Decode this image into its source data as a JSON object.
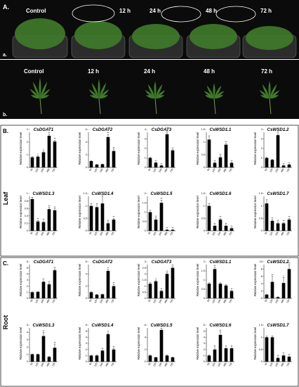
{
  "panel_a": {
    "letter": "A.",
    "sub_letter": "a.",
    "timepoints": [
      "Control",
      "12 h",
      "24 h",
      "48 h",
      "72 h"
    ]
  },
  "panel_b_photo": {
    "sub_letter": "b.",
    "timepoints": [
      "Control",
      "12 h",
      "24 h",
      "48 h",
      "72 h"
    ]
  },
  "panel_B": {
    "letter": "B.",
    "tissue": "Leaf"
  },
  "panel_C": {
    "letter": "C.",
    "tissue": "Root"
  },
  "colors": {
    "bar": "#000000",
    "photo_bg": "#0b0b0b",
    "leaf": "#3f7a2a"
  },
  "chart_data": [
    {
      "type": "bar",
      "panel": "B",
      "row": 0,
      "col": 0,
      "title": "CsDGAT1",
      "ylabel": "Relative expression level",
      "categories": [
        "0h",
        "12h",
        "24h",
        "48h",
        "72h"
      ],
      "values": [
        0.8,
        0.85,
        1.2,
        2.5,
        2.05
      ],
      "errors": [
        0.05,
        0.08,
        0.1,
        0.12,
        0.1
      ],
      "sig": [
        "",
        "*",
        "*",
        "**",
        "**"
      ],
      "yticks": [
        0,
        1,
        2,
        3
      ],
      "ylim": [
        0,
        3
      ]
    },
    {
      "type": "bar",
      "panel": "B",
      "row": 0,
      "col": 1,
      "title": "CsDGAT2",
      "ylabel": "Relative expression level",
      "categories": [
        "0h",
        "12h",
        "24h",
        "48h",
        "72h"
      ],
      "values": [
        1.0,
        0.45,
        0.5,
        4.8,
        2.6
      ],
      "errors": [
        0.06,
        0.05,
        0.05,
        0.4,
        0.3
      ],
      "sig": [
        "",
        "",
        "",
        "**",
        "**"
      ],
      "yticks": [
        0,
        2,
        4,
        6
      ],
      "ylim": [
        0,
        6
      ]
    },
    {
      "type": "bar",
      "panel": "B",
      "row": 0,
      "col": 2,
      "title": "CsDGAT3",
      "ylabel": "Relative expression level",
      "categories": [
        "0h",
        "12h",
        "24h",
        "48h",
        "72h"
      ],
      "values": [
        1.0,
        0.5,
        0.2,
        3.5,
        1.8
      ],
      "errors": [
        0.08,
        0.05,
        0.03,
        0.15,
        0.1
      ],
      "sig": [
        "",
        "**",
        "**",
        "**",
        "**"
      ],
      "yticks": [
        0,
        1,
        2,
        3,
        4
      ],
      "ylim": [
        0,
        4
      ]
    },
    {
      "type": "bar",
      "panel": "B",
      "row": 0,
      "col": 3,
      "title": "CsWSD1.1",
      "ylabel": "Relative expression level",
      "categories": [
        "0h",
        "12h",
        "24h",
        "48h",
        "72h"
      ],
      "values": [
        1.1,
        0.18,
        0.4,
        0.9,
        0.18
      ],
      "errors": [
        0.15,
        0.03,
        0.05,
        0.05,
        0.03
      ],
      "sig": [
        "",
        "**",
        "**",
        "**",
        "**"
      ],
      "yticks": [
        0,
        0.5,
        1.0,
        1.5
      ],
      "ylim": [
        0,
        1.5
      ]
    },
    {
      "type": "bar",
      "panel": "B",
      "row": 0,
      "col": 4,
      "title": "CsWSD1.2",
      "ylabel": "Relative expression level",
      "categories": [
        "0h",
        "12h",
        "24h",
        "48h",
        "72h"
      ],
      "values": [
        1.0,
        0.8,
        3.4,
        0.2,
        0.3
      ],
      "errors": [
        0.05,
        0.05,
        0.15,
        0.03,
        0.03
      ],
      "sig": [
        "",
        "",
        "**",
        "**",
        "**"
      ],
      "yticks": [
        0,
        1,
        2,
        3,
        4
      ],
      "ylim": [
        0,
        4
      ]
    },
    {
      "type": "bar",
      "panel": "B",
      "row": 1,
      "col": 0,
      "title": "CsWSD1.3",
      "ylabel": "Relative expression level",
      "categories": [
        "0h",
        "12h",
        "24h",
        "48h",
        "72h"
      ],
      "values": [
        0.85,
        0.25,
        0.23,
        0.58,
        0.55
      ],
      "errors": [
        0.05,
        0.03,
        0.03,
        0.05,
        0.04
      ],
      "sig": [
        "",
        "**",
        "**",
        "**",
        "**"
      ],
      "yticks": [
        0,
        0.2,
        0.4,
        0.6,
        0.8,
        1.0
      ],
      "ylim": [
        0,
        1.0
      ]
    },
    {
      "type": "bar",
      "panel": "B",
      "row": 1,
      "col": 1,
      "title": "CsWSD1.4",
      "ylabel": "Relative expression level",
      "categories": [
        "0h",
        "12h",
        "24h",
        "48h",
        "72h"
      ],
      "values": [
        1.0,
        0.95,
        1.1,
        0.3,
        0.45
      ],
      "errors": [
        0.1,
        0.15,
        0.3,
        0.05,
        0.05
      ],
      "sig": [
        "",
        "",
        "",
        "**",
        "**"
      ],
      "yticks": [
        0,
        0.5,
        1.0,
        1.5
      ],
      "ylim": [
        0,
        1.5
      ]
    },
    {
      "type": "bar",
      "panel": "B",
      "row": 1,
      "col": 2,
      "title": "CsWSD1.5",
      "ylabel": "Relative expression level",
      "categories": [
        "0h",
        "12h",
        "24h",
        "48h",
        "72h"
      ],
      "values": [
        1.0,
        0.6,
        1.5,
        0.05,
        0.05
      ],
      "errors": [
        0.1,
        0.1,
        0.15,
        0.02,
        0.02
      ],
      "sig": [
        "",
        "**",
        "**",
        "**",
        "**"
      ],
      "yticks": [
        0,
        0.5,
        1.0,
        1.5,
        2.0
      ],
      "ylim": [
        0,
        2.0
      ]
    },
    {
      "type": "bar",
      "panel": "B",
      "row": 1,
      "col": 3,
      "title": "CsWSD1.6",
      "ylabel": "Relative expression level",
      "categories": [
        "0h",
        "12h",
        "24h",
        "48h",
        "72h"
      ],
      "values": [
        1.0,
        0.2,
        0.45,
        0.2,
        0.1
      ],
      "errors": [
        0.1,
        0.03,
        0.05,
        0.03,
        0.02
      ],
      "sig": [
        "",
        "**",
        "**",
        "**",
        "**"
      ],
      "yticks": [
        0,
        0.5,
        1.0,
        1.5
      ],
      "ylim": [
        0,
        1.5
      ]
    },
    {
      "type": "bar",
      "panel": "B",
      "row": 1,
      "col": 4,
      "title": "CsWSD1.7",
      "ylabel": "Relative expression level",
      "categories": [
        "0h",
        "12h",
        "24h",
        "48h",
        "72h"
      ],
      "values": [
        1.1,
        0.4,
        0.3,
        0.3,
        0.45
      ],
      "errors": [
        0.15,
        0.05,
        0.05,
        0.03,
        0.05
      ],
      "sig": [
        "",
        "**",
        "**",
        "**",
        "**"
      ],
      "yticks": [
        0,
        0.5,
        1.0,
        1.5
      ],
      "ylim": [
        0,
        1.5
      ]
    },
    {
      "type": "bar",
      "panel": "C",
      "row": 0,
      "col": 0,
      "title": "CsDGAT1",
      "ylabel": "Relative expression level",
      "categories": [
        "0h",
        "12h",
        "24h",
        "48h",
        "72h"
      ],
      "values": [
        1.0,
        1.05,
        2.7,
        2.3,
        4.6
      ],
      "errors": [
        0.05,
        0.05,
        0.15,
        0.15,
        0.2
      ],
      "sig": [
        "",
        "",
        "**",
        "**",
        "**"
      ],
      "yticks": [
        0,
        1,
        2,
        3,
        4,
        5,
        6
      ],
      "ylim": [
        0,
        6
      ]
    },
    {
      "type": "bar",
      "panel": "C",
      "row": 0,
      "col": 1,
      "title": "CsDGAT2",
      "ylabel": "Relative expression level",
      "categories": [
        "0h",
        "12h",
        "24h",
        "48h",
        "72h"
      ],
      "values": [
        1.0,
        0.6,
        0.65,
        4.5,
        2.0
      ],
      "errors": [
        0.06,
        0.05,
        0.05,
        0.2,
        0.3
      ],
      "sig": [
        "",
        "",
        "",
        "**",
        "**"
      ],
      "yticks": [
        0,
        2,
        4,
        6
      ],
      "ylim": [
        0,
        6
      ]
    },
    {
      "type": "bar",
      "panel": "C",
      "row": 0,
      "col": 2,
      "title": "CsDGAT3",
      "ylabel": "Relative expression level",
      "categories": [
        "0h",
        "12h",
        "24h",
        "48h",
        "72h"
      ],
      "values": [
        1.2,
        1.4,
        0.6,
        2.0,
        2.5
      ],
      "errors": [
        0.1,
        0.1,
        0.05,
        0.1,
        0.1
      ],
      "sig": [
        "",
        "*",
        "**",
        "**",
        "**"
      ],
      "yticks": [
        0,
        0.5,
        1.0,
        1.5,
        2.0,
        2.5,
        3.0
      ],
      "ylim": [
        0,
        3.0
      ]
    },
    {
      "type": "bar",
      "panel": "C",
      "row": 0,
      "col": 3,
      "title": "CsWSD1.1",
      "ylabel": "Relative expression level",
      "categories": [
        "0h",
        "12h",
        "24h",
        "48h",
        "72h"
      ],
      "values": [
        0.8,
        1.6,
        0.8,
        0.7,
        0.4
      ],
      "errors": [
        0.05,
        0.1,
        0.05,
        0.05,
        0.04
      ],
      "sig": [
        "",
        "**",
        "",
        "",
        "**"
      ],
      "yticks": [
        0,
        0.5,
        1.0,
        1.5,
        2.0
      ],
      "ylim": [
        0,
        2.0
      ]
    },
    {
      "type": "bar",
      "panel": "C",
      "row": 0,
      "col": 4,
      "title": "CsWSD1.2",
      "ylabel": "Relative expression level",
      "categories": [
        "0h",
        "12h",
        "24h",
        "48h",
        "72h"
      ],
      "values": [
        1.0,
        4.5,
        0.3,
        4.2,
        8.0
      ],
      "errors": [
        0.1,
        1.5,
        0.1,
        1.5,
        1.2
      ],
      "sig": [
        "",
        "**",
        "",
        "*",
        "**"
      ],
      "yticks": [
        0,
        2,
        4,
        6,
        8,
        10
      ],
      "ylim": [
        0,
        10
      ]
    },
    {
      "type": "bar",
      "panel": "C",
      "row": 1,
      "col": 0,
      "title": "CsWSD1.3",
      "ylabel": "Relative expression level",
      "categories": [
        "0h",
        "12h",
        "24h",
        "48h",
        "72h"
      ],
      "values": [
        1.0,
        1.0,
        3.5,
        0.65,
        1.9
      ],
      "errors": [
        0.05,
        0.05,
        0.5,
        0.05,
        0.5
      ],
      "sig": [
        "",
        "",
        "**",
        "",
        "**"
      ],
      "yticks": [
        0,
        1,
        2,
        3,
        4,
        5
      ],
      "ylim": [
        0,
        5
      ]
    },
    {
      "type": "bar",
      "panel": "C",
      "row": 1,
      "col": 1,
      "title": "CsWSD1.4",
      "ylabel": "Relative expression level",
      "categories": [
        "0h",
        "12h",
        "24h",
        "48h",
        "72h"
      ],
      "values": [
        1.0,
        1.0,
        1.8,
        4.5,
        2.0
      ],
      "errors": [
        0.05,
        0.1,
        0.1,
        0.2,
        0.2
      ],
      "sig": [
        "",
        "",
        "**",
        "**",
        "**"
      ],
      "yticks": [
        0,
        1,
        2,
        3,
        4,
        5,
        6
      ],
      "ylim": [
        0,
        6
      ]
    },
    {
      "type": "bar",
      "panel": "C",
      "row": 1,
      "col": 2,
      "title": "CsWSD1.5",
      "ylabel": "Relative expression level",
      "categories": [
        "0h",
        "12h",
        "24h",
        "48h",
        "72h"
      ],
      "values": [
        1.0,
        0.7,
        5.2,
        1.0,
        0.7
      ],
      "errors": [
        0.1,
        0.05,
        0.3,
        0.1,
        0.05
      ],
      "sig": [
        "",
        "",
        "**",
        "",
        ""
      ],
      "yticks": [
        0,
        2,
        4,
        6
      ],
      "ylim": [
        0,
        6
      ]
    },
    {
      "type": "bar",
      "panel": "C",
      "row": 1,
      "col": 3,
      "title": "CsWSD1.6",
      "ylabel": "Relative expression level",
      "categories": [
        "0h",
        "12h",
        "24h",
        "48h",
        "72h"
      ],
      "values": [
        1.0,
        2.0,
        4.4,
        2.2,
        2.2
      ],
      "errors": [
        0.1,
        0.6,
        0.5,
        0.4,
        0.4
      ],
      "sig": [
        "",
        "",
        "**",
        "",
        ""
      ],
      "yticks": [
        0,
        1,
        2,
        3,
        4,
        5,
        6
      ],
      "ylim": [
        0,
        6
      ]
    },
    {
      "type": "bar",
      "panel": "C",
      "row": 1,
      "col": 4,
      "title": "CsWSD1.7",
      "ylabel": "Relative expression level",
      "categories": [
        "0h",
        "12h",
        "24h",
        "48h",
        "72h"
      ],
      "values": [
        1.0,
        1.0,
        0.15,
        0.25,
        0.2
      ],
      "errors": [
        0.05,
        0.05,
        0.03,
        0.03,
        0.03
      ],
      "sig": [
        "",
        "",
        "**",
        "**",
        "**"
      ],
      "yticks": [
        0,
        0.5,
        1.0,
        1.5
      ],
      "ylim": [
        0,
        1.5
      ]
    }
  ]
}
